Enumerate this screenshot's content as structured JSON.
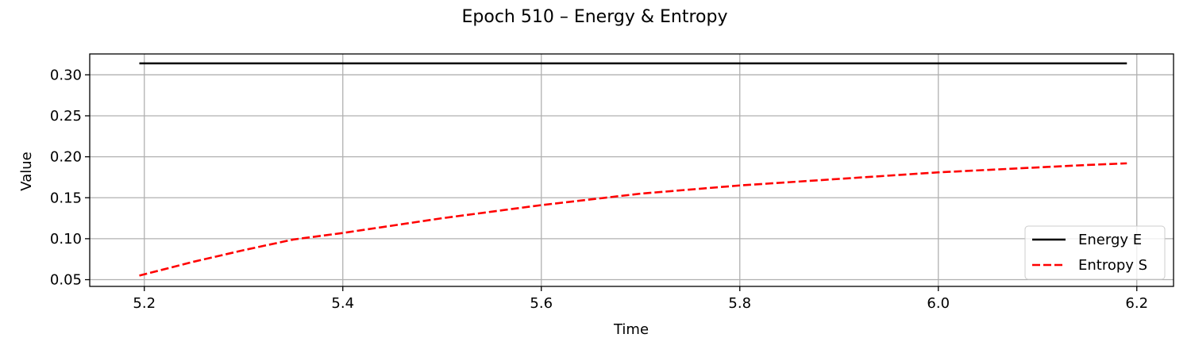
{
  "chart_data": {
    "type": "line",
    "title": "Epoch 510 – Energy & Entropy",
    "xlabel": "Time",
    "ylabel": "Value",
    "xlim": [
      5.145,
      6.237
    ],
    "ylim": [
      0.0418,
      0.3255
    ],
    "xticks": [
      5.2,
      5.4,
      5.6,
      5.8,
      6.0,
      6.2
    ],
    "xtick_labels": [
      "5.2",
      "5.4",
      "5.6",
      "5.8",
      "6.0",
      "6.2"
    ],
    "yticks": [
      0.05,
      0.1,
      0.15,
      0.2,
      0.25,
      0.3
    ],
    "ytick_labels": [
      "0.05",
      "0.10",
      "0.15",
      "0.20",
      "0.25",
      "0.30"
    ],
    "grid": true,
    "legend_position": "lower-right",
    "x": [
      5.195,
      5.25,
      5.3,
      5.35,
      5.4,
      5.45,
      5.5,
      5.55,
      5.6,
      5.65,
      5.7,
      5.75,
      5.8,
      5.85,
      5.9,
      5.95,
      6.0,
      6.05,
      6.1,
      6.15,
      6.19
    ],
    "series": [
      {
        "name": "Energy E",
        "color": "#000000",
        "style": "solid",
        "values": [
          0.314,
          0.314,
          0.314,
          0.314,
          0.314,
          0.314,
          0.314,
          0.314,
          0.314,
          0.314,
          0.314,
          0.314,
          0.314,
          0.314,
          0.314,
          0.314,
          0.314,
          0.314,
          0.314,
          0.314,
          0.314
        ]
      },
      {
        "name": "Entropy S",
        "color": "#ff0000",
        "style": "dashed",
        "values": [
          0.055,
          0.072,
          0.086,
          0.099,
          0.107,
          0.116,
          0.125,
          0.133,
          0.141,
          0.148,
          0.155,
          0.16,
          0.165,
          0.169,
          0.173,
          0.177,
          0.181,
          0.184,
          0.187,
          0.19,
          0.192
        ]
      }
    ]
  }
}
